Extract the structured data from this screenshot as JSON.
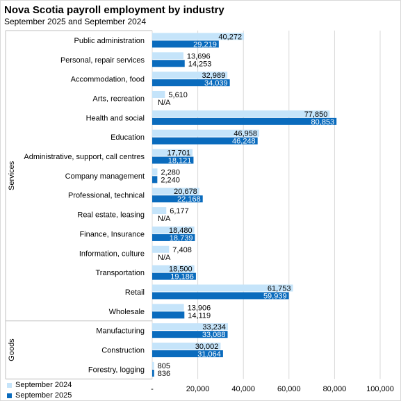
{
  "chart_data": {
    "type": "bar",
    "orientation": "horizontal",
    "title": "Nova Scotia payroll employment by industry",
    "subtitle": "September 2025 and September 2024",
    "groups": [
      {
        "name": "Services",
        "categories": [
          "Public administration",
          "Personal, repair services",
          "Accommodation, food",
          "Arts, recreation",
          "Health and social",
          "Education",
          "Administrative, support, call centres",
          "Company management",
          "Professional, technical",
          "Real estate, leasing",
          "Finance, Insurance",
          "Information, culture",
          "Transportation",
          "Retail",
          "Wholesale"
        ]
      },
      {
        "name": "Goods",
        "categories": [
          "Manufacturing",
          "Construction",
          "Forestry, logging"
        ]
      }
    ],
    "categories": [
      "Public administration",
      "Personal, repair services",
      "Accommodation, food",
      "Arts, recreation",
      "Health and social",
      "Education",
      "Administrative, support, call centres",
      "Company management",
      "Professional, technical",
      "Real estate, leasing",
      "Finance, Insurance",
      "Information, culture",
      "Transportation",
      "Retail",
      "Wholesale",
      "Manufacturing",
      "Construction",
      "Forestry, logging"
    ],
    "series": [
      {
        "name": "September 2024",
        "color": "#c5e4fa",
        "values": [
          40272,
          13696,
          32989,
          5610,
          77850,
          46958,
          17701,
          2280,
          20678,
          6177,
          18480,
          7408,
          18500,
          61753,
          13906,
          33234,
          30002,
          805
        ],
        "labels": [
          "40,272",
          "13,696",
          "32,989",
          "5,610",
          "77,850",
          "46,958",
          "17,701",
          "2,280",
          "20,678",
          "6,177",
          "18,480",
          "7,408",
          "18,500",
          "61,753",
          "13,906",
          "33,234",
          "30,002",
          "805"
        ]
      },
      {
        "name": "September 2025",
        "color": "#0a6bbd",
        "values": [
          29219,
          14253,
          34039,
          null,
          80853,
          46248,
          18121,
          2240,
          22168,
          null,
          18739,
          null,
          19186,
          59939,
          14119,
          33088,
          31064,
          836
        ],
        "labels": [
          "29,219",
          "14,253",
          "34,039",
          "N/A",
          "80,853",
          "46,248",
          "18,121",
          "2,240",
          "22,168",
          "N/A",
          "18,739",
          "N/A",
          "19,186",
          "59,939",
          "14,119",
          "33,088",
          "31,064",
          "836"
        ]
      }
    ],
    "xlim": [
      0,
      100000
    ],
    "xticks": [
      0,
      20000,
      40000,
      60000,
      80000,
      100000
    ],
    "xtick_labels": [
      "-",
      "20,000",
      "40,000",
      "60,000",
      "80,000",
      "100,000"
    ],
    "grid": "vertical",
    "legend": "bottom-left"
  }
}
